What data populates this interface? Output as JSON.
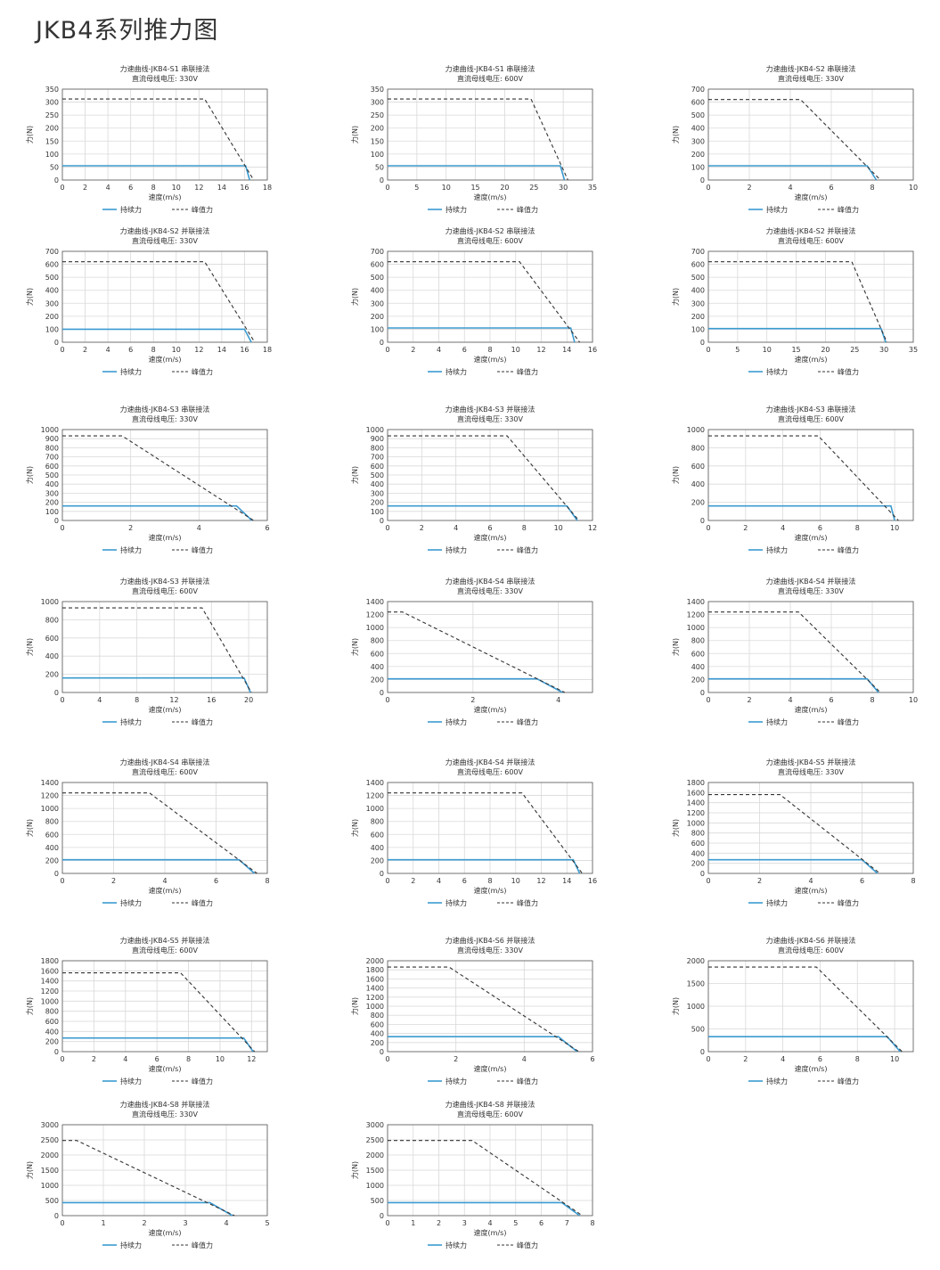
{
  "page": {
    "title": "JKB4系列推力图",
    "continuous_label": "持续力",
    "peak_label": "峰值力",
    "xlabel": "速度(m/s)",
    "ylabel": "力(N)"
  },
  "colors": {
    "continuous": "#3b9bd1",
    "peak": "#333333",
    "grid": "#d9d9d9",
    "frame": "#555555"
  },
  "chart_data": [
    {
      "type": "line",
      "title": "力速曲线-JKB4-S1 串联接法",
      "subtitle": "直流母线电压: 330V",
      "xlabel": "速度(m/s)",
      "ylabel": "力(N)",
      "xlim": [
        0,
        18
      ],
      "xticks": [
        0,
        2,
        4,
        6,
        8,
        10,
        12,
        14,
        16,
        18
      ],
      "ylim": [
        0,
        350
      ],
      "yticks": [
        0,
        50,
        100,
        150,
        200,
        250,
        300,
        350
      ],
      "series": [
        {
          "name": "持续力",
          "x": [
            0,
            16.1,
            16.45
          ],
          "y": [
            55,
            55,
            0
          ]
        },
        {
          "name": "峰值力",
          "x": [
            0,
            12.5,
            16.8
          ],
          "y": [
            312,
            312,
            0
          ]
        }
      ]
    },
    {
      "type": "line",
      "title": "力速曲线-JKB4-S1 串联接法",
      "subtitle": "直流母线电压: 600V",
      "xlabel": "速度(m/s)",
      "ylabel": "力(N)",
      "xlim": [
        0,
        35
      ],
      "xticks": [
        0,
        5,
        10,
        15,
        20,
        25,
        30,
        35
      ],
      "ylim": [
        0,
        350
      ],
      "yticks": [
        0,
        50,
        100,
        150,
        200,
        250,
        300,
        350
      ],
      "series": [
        {
          "name": "持续力",
          "x": [
            0,
            29.5,
            30.2
          ],
          "y": [
            55,
            55,
            0
          ]
        },
        {
          "name": "峰值力",
          "x": [
            0,
            24.5,
            30.8
          ],
          "y": [
            312,
            312,
            0
          ]
        }
      ]
    },
    {
      "type": "line",
      "title": "力速曲线-JKB4-S2 串联接法",
      "subtitle": "直流母线电压: 330V",
      "xlabel": "速度(m/s)",
      "ylabel": "力(N)",
      "xlim": [
        0,
        10
      ],
      "xticks": [
        0,
        2,
        4,
        6,
        8,
        10
      ],
      "ylim": [
        0,
        700
      ],
      "yticks": [
        0,
        100,
        200,
        300,
        400,
        500,
        600,
        700
      ],
      "series": [
        {
          "name": "持续力",
          "x": [
            0,
            7.75,
            8.2
          ],
          "y": [
            110,
            110,
            0
          ]
        },
        {
          "name": "峰值力",
          "x": [
            0,
            4.5,
            8.4
          ],
          "y": [
            620,
            620,
            0
          ]
        }
      ]
    },
    {
      "type": "line",
      "title": "力速曲线-JKB4-S2 并联接法",
      "subtitle": "直流母线电压: 330V",
      "xlabel": "速度(m/s)",
      "ylabel": "力(N)",
      "xlim": [
        0,
        18
      ],
      "xticks": [
        0,
        2,
        4,
        6,
        8,
        10,
        12,
        14,
        16,
        18
      ],
      "ylim": [
        0,
        700
      ],
      "yticks": [
        0,
        100,
        200,
        300,
        400,
        500,
        600,
        700
      ],
      "series": [
        {
          "name": "持续力",
          "x": [
            0,
            16.0,
            16.6
          ],
          "y": [
            100,
            100,
            0
          ]
        },
        {
          "name": "峰值力",
          "x": [
            0,
            12.5,
            16.9
          ],
          "y": [
            620,
            620,
            0
          ]
        }
      ]
    },
    {
      "type": "line",
      "title": "力速曲线-JKB4-S2 串联接法",
      "subtitle": "直流母线电压: 600V",
      "xlabel": "速度(m/s)",
      "ylabel": "力(N)",
      "xlim": [
        0,
        16
      ],
      "xticks": [
        0,
        2,
        4,
        6,
        8,
        10,
        12,
        14,
        16
      ],
      "ylim": [
        0,
        700
      ],
      "yticks": [
        0,
        100,
        200,
        300,
        400,
        500,
        600,
        700
      ],
      "series": [
        {
          "name": "持续力",
          "x": [
            0,
            14.3,
            14.6
          ],
          "y": [
            110,
            110,
            0
          ]
        },
        {
          "name": "峰值力",
          "x": [
            0,
            10.3,
            15.0
          ],
          "y": [
            620,
            620,
            0
          ]
        }
      ]
    },
    {
      "type": "line",
      "title": "力速曲线-JKB4-S2 并联接法",
      "subtitle": "直流母线电压: 600V",
      "xlabel": "速度(m/s)",
      "ylabel": "力(N)",
      "xlim": [
        0,
        35
      ],
      "xticks": [
        0,
        5,
        10,
        15,
        20,
        25,
        30,
        35
      ],
      "ylim": [
        0,
        700
      ],
      "yticks": [
        0,
        100,
        200,
        300,
        400,
        500,
        600,
        700
      ],
      "series": [
        {
          "name": "持续力",
          "x": [
            0,
            29.5,
            30.3
          ],
          "y": [
            105,
            105,
            0
          ]
        },
        {
          "name": "峰值力",
          "x": [
            0,
            24.5,
            30.5
          ],
          "y": [
            620,
            620,
            0
          ]
        }
      ]
    },
    {
      "type": "line",
      "title": "力速曲线-JKB4-S3 串联接法",
      "subtitle": "直流母线电压: 330V",
      "xlabel": "速度(m/s)",
      "ylabel": "力(N)",
      "xlim": [
        0,
        6
      ],
      "xticks": [
        0,
        2,
        4,
        6
      ],
      "ylim": [
        0,
        1000
      ],
      "yticks": [
        0,
        100,
        200,
        300,
        400,
        500,
        600,
        700,
        800,
        900,
        1000
      ],
      "series": [
        {
          "name": "持续力",
          "x": [
            0,
            5.1,
            5.55
          ],
          "y": [
            160,
            160,
            0
          ]
        },
        {
          "name": "峰值力",
          "x": [
            0,
            1.75,
            5.6
          ],
          "y": [
            930,
            930,
            0
          ]
        }
      ]
    },
    {
      "type": "line",
      "title": "力速曲线-JKB4-S3 并联接法",
      "subtitle": "直流母线电压: 330V",
      "xlabel": "速度(m/s)",
      "ylabel": "力(N)",
      "xlim": [
        0,
        12
      ],
      "xticks": [
        0,
        2,
        4,
        6,
        8,
        10,
        12
      ],
      "ylim": [
        0,
        1000
      ],
      "yticks": [
        0,
        100,
        200,
        300,
        400,
        500,
        600,
        700,
        800,
        900,
        1000
      ],
      "series": [
        {
          "name": "持续力",
          "x": [
            0,
            10.5,
            11.1
          ],
          "y": [
            160,
            160,
            0
          ]
        },
        {
          "name": "峰值力",
          "x": [
            0,
            7.0,
            11.2
          ],
          "y": [
            930,
            930,
            0
          ]
        }
      ]
    },
    {
      "type": "line",
      "title": "力速曲线-JKB4-S3 串联接法",
      "subtitle": "直流母线电压: 600V",
      "xlabel": "速度(m/s)",
      "ylabel": "力(N)",
      "xlim": [
        0,
        11
      ],
      "xticks": [
        0,
        2,
        4,
        6,
        8,
        10
      ],
      "ylim": [
        0,
        1000
      ],
      "yticks": [
        0,
        200,
        400,
        600,
        800,
        1000
      ],
      "series": [
        {
          "name": "持续力",
          "x": [
            0,
            9.8,
            10.0
          ],
          "y": [
            160,
            160,
            0
          ]
        },
        {
          "name": "峰值力",
          "x": [
            0,
            5.9,
            10.2
          ],
          "y": [
            930,
            930,
            0
          ]
        }
      ]
    },
    {
      "type": "line",
      "title": "力速曲线-JKB4-S3 并联接法",
      "subtitle": "直流母线电压: 600V",
      "xlabel": "速度(m/s)",
      "ylabel": "力(N)",
      "xlim": [
        0,
        22
      ],
      "xticks": [
        0,
        4,
        8,
        12,
        16,
        20
      ],
      "ylim": [
        0,
        1000
      ],
      "yticks": [
        0,
        200,
        400,
        600,
        800,
        1000
      ],
      "series": [
        {
          "name": "持续力",
          "x": [
            0,
            19.5,
            20.2
          ],
          "y": [
            160,
            160,
            0
          ]
        },
        {
          "name": "峰值力",
          "x": [
            0,
            15.0,
            20.3
          ],
          "y": [
            930,
            930,
            0
          ]
        }
      ]
    },
    {
      "type": "line",
      "title": "力速曲线-JKB4-S4 串联接法",
      "subtitle": "直流母线电压: 330V",
      "xlabel": "速度(m/s)",
      "ylabel": "力(N)",
      "xlim": [
        0,
        4.8
      ],
      "xticks": [
        0,
        2,
        4
      ],
      "ylim": [
        0,
        1400
      ],
      "yticks": [
        0,
        200,
        400,
        600,
        800,
        1000,
        1200,
        1400
      ],
      "series": [
        {
          "name": "持续力",
          "x": [
            0,
            3.5,
            4.1
          ],
          "y": [
            210,
            210,
            0
          ]
        },
        {
          "name": "峰值力",
          "x": [
            0,
            0.35,
            4.15
          ],
          "y": [
            1240,
            1240,
            0
          ]
        }
      ]
    },
    {
      "type": "line",
      "title": "力速曲线-JKB4-S4 并联接法",
      "subtitle": "直流母线电压: 330V",
      "xlabel": "速度(m/s)",
      "ylabel": "力(N)",
      "xlim": [
        0,
        10
      ],
      "xticks": [
        0,
        2,
        4,
        6,
        8,
        10
      ],
      "ylim": [
        0,
        1400
      ],
      "yticks": [
        0,
        200,
        400,
        600,
        800,
        1000,
        1200,
        1400
      ],
      "series": [
        {
          "name": "持续力",
          "x": [
            0,
            7.75,
            8.3
          ],
          "y": [
            210,
            210,
            0
          ]
        },
        {
          "name": "峰值力",
          "x": [
            0,
            4.4,
            8.4
          ],
          "y": [
            1240,
            1240,
            0
          ]
        }
      ]
    },
    {
      "type": "line",
      "title": "力速曲线-JKB4-S4 串联接法",
      "subtitle": "直流母线电压: 600V",
      "xlabel": "速度(m/s)",
      "ylabel": "力(N)",
      "xlim": [
        0,
        8
      ],
      "xticks": [
        0,
        2,
        4,
        6,
        8
      ],
      "ylim": [
        0,
        1400
      ],
      "yticks": [
        0,
        200,
        400,
        600,
        800,
        1000,
        1200,
        1400
      ],
      "series": [
        {
          "name": "持续力",
          "x": [
            0,
            6.9,
            7.5
          ],
          "y": [
            210,
            210,
            0
          ]
        },
        {
          "name": "峰值力",
          "x": [
            0,
            3.4,
            7.6
          ],
          "y": [
            1240,
            1240,
            0
          ]
        }
      ]
    },
    {
      "type": "line",
      "title": "力速曲线-JKB4-S4 并联接法",
      "subtitle": "直流母线电压: 600V",
      "xlabel": "速度(m/s)",
      "ylabel": "力(N)",
      "xlim": [
        0,
        16
      ],
      "xticks": [
        0,
        2,
        4,
        6,
        8,
        10,
        12,
        14,
        16
      ],
      "ylim": [
        0,
        1400
      ],
      "yticks": [
        0,
        200,
        400,
        600,
        800,
        1000,
        1200,
        1400
      ],
      "series": [
        {
          "name": "持续力",
          "x": [
            0,
            14.5,
            15.0
          ],
          "y": [
            210,
            210,
            0
          ]
        },
        {
          "name": "峰值力",
          "x": [
            0,
            10.5,
            15.2
          ],
          "y": [
            1240,
            1240,
            0
          ]
        }
      ]
    },
    {
      "type": "line",
      "title": "力速曲线-JKB4-S5 并联接法",
      "subtitle": "直流母线电压: 330V",
      "xlabel": "速度(m/s)",
      "ylabel": "力(N)",
      "xlim": [
        0,
        8
      ],
      "xticks": [
        0,
        2,
        4,
        6,
        8
      ],
      "ylim": [
        0,
        1800
      ],
      "yticks": [
        0,
        200,
        400,
        600,
        800,
        1000,
        1200,
        1400,
        1600,
        1800
      ],
      "series": [
        {
          "name": "持续力",
          "x": [
            0,
            6.0,
            6.6
          ],
          "y": [
            270,
            270,
            0
          ]
        },
        {
          "name": "峰值力",
          "x": [
            0,
            2.8,
            6.7
          ],
          "y": [
            1560,
            1560,
            0
          ]
        }
      ]
    },
    {
      "type": "line",
      "title": "力速曲线-JKB4-S5 并联接法",
      "subtitle": "直流母线电压: 600V",
      "xlabel": "速度(m/s)",
      "ylabel": "力(N)",
      "xlim": [
        0,
        13
      ],
      "xticks": [
        0,
        2,
        4,
        6,
        8,
        10,
        12
      ],
      "ylim": [
        0,
        1800
      ],
      "yticks": [
        0,
        200,
        400,
        600,
        800,
        1000,
        1200,
        1400,
        1600,
        1800
      ],
      "series": [
        {
          "name": "持续力",
          "x": [
            0,
            11.5,
            12.1
          ],
          "y": [
            270,
            270,
            0
          ]
        },
        {
          "name": "峰值力",
          "x": [
            0,
            7.5,
            12.2
          ],
          "y": [
            1560,
            1560,
            0
          ]
        }
      ]
    },
    {
      "type": "line",
      "title": "力速曲线-JKB4-S6 并联接法",
      "subtitle": "直流母线电压: 330V",
      "xlabel": "速度(m/s)",
      "ylabel": "力(N)",
      "xlim": [
        0,
        6
      ],
      "xticks": [
        0,
        2,
        4,
        6
      ],
      "ylim": [
        0,
        2000
      ],
      "yticks": [
        0,
        200,
        400,
        600,
        800,
        1000,
        1200,
        1400,
        1600,
        1800,
        2000
      ],
      "series": [
        {
          "name": "持续力",
          "x": [
            0,
            5.0,
            5.55
          ],
          "y": [
            330,
            330,
            0
          ]
        },
        {
          "name": "峰值力",
          "x": [
            0,
            1.8,
            5.6
          ],
          "y": [
            1860,
            1860,
            0
          ]
        }
      ]
    },
    {
      "type": "line",
      "title": "力速曲线-JKB4-S6 并联接法",
      "subtitle": "直流母线电压: 600V",
      "xlabel": "速度(m/s)",
      "ylabel": "力(N)",
      "xlim": [
        0,
        11
      ],
      "xticks": [
        0,
        2,
        4,
        6,
        8,
        10
      ],
      "ylim": [
        0,
        2000
      ],
      "yticks": [
        0,
        500,
        1000,
        1500,
        2000
      ],
      "series": [
        {
          "name": "持续力",
          "x": [
            0,
            9.6,
            10.3
          ],
          "y": [
            330,
            330,
            0
          ]
        },
        {
          "name": "峰值力",
          "x": [
            0,
            5.8,
            10.4
          ],
          "y": [
            1860,
            1860,
            0
          ]
        }
      ]
    },
    {
      "type": "line",
      "title": "力速曲线-JKB4-S8 并联接法",
      "subtitle": "直流母线电压: 330V",
      "xlabel": "速度(m/s)",
      "ylabel": "力(N)",
      "xlim": [
        0,
        5
      ],
      "xticks": [
        0,
        1,
        2,
        3,
        4,
        5
      ],
      "ylim": [
        0,
        3000
      ],
      "yticks": [
        0,
        500,
        1000,
        1500,
        2000,
        2500,
        3000
      ],
      "series": [
        {
          "name": "持续力",
          "x": [
            0,
            3.6,
            4.15
          ],
          "y": [
            430,
            430,
            0
          ]
        },
        {
          "name": "峰值力",
          "x": [
            0,
            0.35,
            4.2
          ],
          "y": [
            2480,
            2480,
            0
          ]
        }
      ]
    },
    {
      "type": "line",
      "title": "力速曲线-JKB4-S8 并联接法",
      "subtitle": "直流母线电压: 600V",
      "xlabel": "速度(m/s)",
      "ylabel": "力(N)",
      "xlim": [
        0,
        8
      ],
      "xticks": [
        0,
        1,
        2,
        3,
        4,
        5,
        6,
        7,
        8
      ],
      "ylim": [
        0,
        3000
      ],
      "yticks": [
        0,
        500,
        1000,
        1500,
        2000,
        2500,
        3000
      ],
      "series": [
        {
          "name": "持续力",
          "x": [
            0,
            6.8,
            7.5
          ],
          "y": [
            430,
            430,
            0
          ]
        },
        {
          "name": "峰值力",
          "x": [
            0,
            3.3,
            7.6
          ],
          "y": [
            2480,
            2480,
            0
          ]
        }
      ]
    }
  ]
}
